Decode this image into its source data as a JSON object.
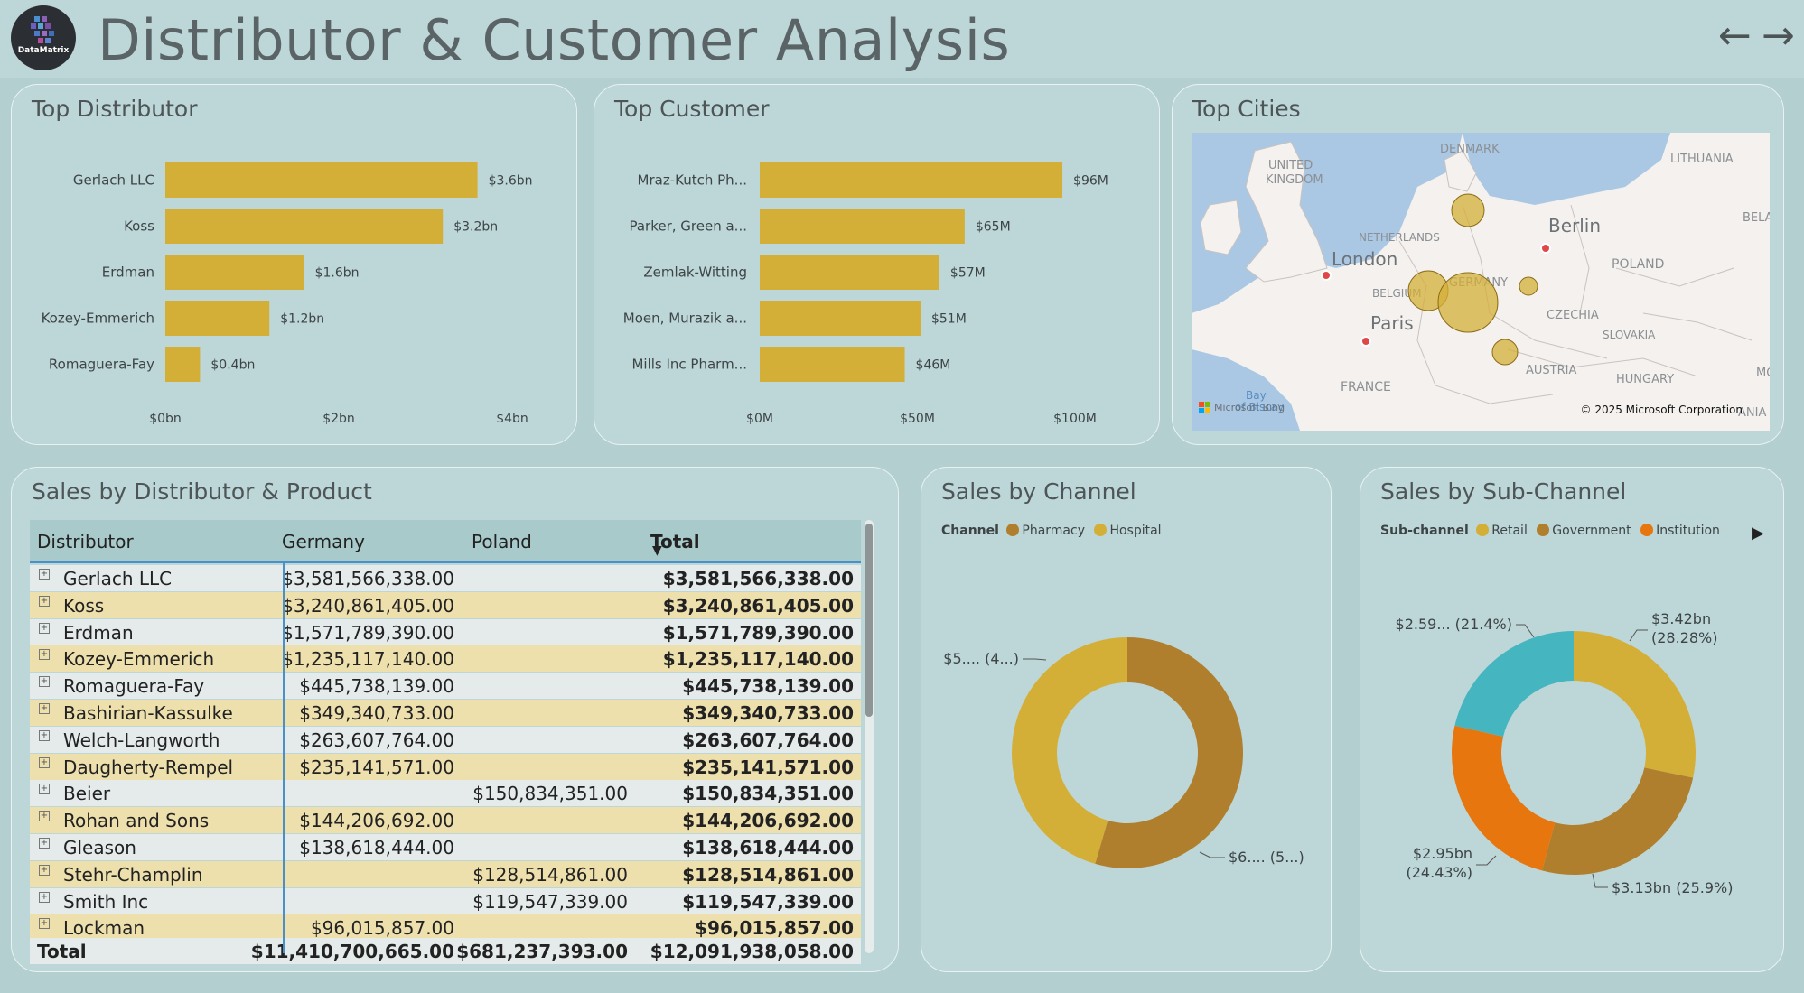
{
  "header": {
    "title": "Distributor & Customer Analysis",
    "logo_text": "DataMatrix",
    "back_icon": "←",
    "forward_icon": "→"
  },
  "top_distributor": {
    "title": "Top Distributor",
    "chart_data": {
      "type": "bar",
      "categories": [
        "Gerlach LLC",
        "Koss",
        "Erdman",
        "Kozey-Emmerich",
        "Romaguera-Fay"
      ],
      "values": [
        3.6,
        3.2,
        1.6,
        1.2,
        0.4
      ],
      "value_labels": [
        "$3.6bn",
        "$3.2bn",
        "$1.6bn",
        "$1.2bn",
        "$0.4bn"
      ],
      "xticks": [
        "$0bn",
        "$2bn",
        "$4bn"
      ],
      "xlim": [
        0,
        4
      ],
      "bar_color": "#d4af37"
    }
  },
  "top_customer": {
    "title": "Top Customer",
    "chart_data": {
      "type": "bar",
      "categories": [
        "Mraz-Kutch Ph...",
        "Parker, Green a...",
        "Zemlak-Witting",
        "Moen, Murazik a...",
        "Mills Inc Pharm..."
      ],
      "values": [
        96,
        65,
        57,
        51,
        46
      ],
      "value_labels": [
        "$96M",
        "$65M",
        "$57M",
        "$51M",
        "$46M"
      ],
      "xticks": [
        "$0M",
        "$50M",
        "$100M"
      ],
      "xlim": [
        0,
        100
      ],
      "bar_color": "#d4af37"
    }
  },
  "top_cities": {
    "title": "Top Cities",
    "map_labels": {
      "united_kingdom": "UNITED KINGDOM",
      "denmark": "DENMARK",
      "lithuania": "LITHUANIA",
      "netherlands": "NETHERLANDS",
      "london": "London",
      "berlin": "Berlin",
      "poland": "POLAND",
      "belgium": "BELGIUM",
      "germany": "GERMANY",
      "paris": "Paris",
      "czechia": "CZECHIA",
      "slovakia": "SLOVAKIA",
      "austria": "AUSTRIA",
      "hungary": "HUNGARY",
      "france": "FRANCE",
      "bay_of_biscay": "Bay of Biscay",
      "bela": "BELA",
      "mo": "MO",
      "ania": "ANIA"
    },
    "bing_label": "Microsoft Bing",
    "copyright": "© 2025 Microsoft Corporation"
  },
  "matrix": {
    "title": "Sales by Distributor & Product",
    "columns": [
      "Distributor",
      "Germany",
      "Poland",
      "Total"
    ],
    "sort_icon": "▼",
    "expand_icon": "+",
    "rows": [
      {
        "name": "Gerlach LLC",
        "germany": "$3,581,566,338.00",
        "poland": "",
        "total": "$3,581,566,338.00"
      },
      {
        "name": "Koss",
        "germany": "$3,240,861,405.00",
        "poland": "",
        "total": "$3,240,861,405.00"
      },
      {
        "name": "Erdman",
        "germany": "$1,571,789,390.00",
        "poland": "",
        "total": "$1,571,789,390.00"
      },
      {
        "name": "Kozey-Emmerich",
        "germany": "$1,235,117,140.00",
        "poland": "",
        "total": "$1,235,117,140.00"
      },
      {
        "name": "Romaguera-Fay",
        "germany": "$445,738,139.00",
        "poland": "",
        "total": "$445,738,139.00"
      },
      {
        "name": "Bashirian-Kassulke",
        "germany": "$349,340,733.00",
        "poland": "",
        "total": "$349,340,733.00"
      },
      {
        "name": "Welch-Langworth",
        "germany": "$263,607,764.00",
        "poland": "",
        "total": "$263,607,764.00"
      },
      {
        "name": "Daugherty-Rempel",
        "germany": "$235,141,571.00",
        "poland": "",
        "total": "$235,141,571.00"
      },
      {
        "name": "Beier",
        "germany": "",
        "poland": "$150,834,351.00",
        "total": "$150,834,351.00"
      },
      {
        "name": "Rohan and Sons",
        "germany": "$144,206,692.00",
        "poland": "",
        "total": "$144,206,692.00"
      },
      {
        "name": "Gleason",
        "germany": "$138,618,444.00",
        "poland": "",
        "total": "$138,618,444.00"
      },
      {
        "name": "Stehr-Champlin",
        "germany": "",
        "poland": "$128,514,861.00",
        "total": "$128,514,861.00"
      },
      {
        "name": "Smith Inc",
        "germany": "",
        "poland": "$119,547,339.00",
        "total": "$119,547,339.00"
      },
      {
        "name": "Lockman",
        "germany": "$96,015,857.00",
        "poland": "",
        "total": "$96,015,857.00"
      }
    ],
    "total_row": {
      "name": "Total",
      "germany": "$11,410,700,665.00",
      "poland": "$681,237,393.00",
      "total": "$12,091,938,058.00"
    }
  },
  "sales_by_channel": {
    "title": "Sales by Channel",
    "legend_title": "Channel",
    "chart_data": {
      "type": "pie",
      "donut": true,
      "categories": [
        "Pharmacy",
        "Hospital"
      ],
      "values": [
        54.5,
        45.5
      ],
      "colors": [
        "#b07f2e",
        "#d4af37"
      ],
      "labels": [
        "$6.... (5...)",
        "$5.... (4...)"
      ]
    }
  },
  "sales_by_subchannel": {
    "title": "Sales by Sub-Channel",
    "legend_title": "Sub-channel",
    "chart_data": {
      "type": "pie",
      "donut": true,
      "categories": [
        "Retail",
        "Government",
        "Institution",
        ""
      ],
      "values": [
        28.28,
        25.9,
        24.43,
        21.4
      ],
      "colors": [
        "#d4af37",
        "#b07f2e",
        "#e8760f",
        "#45b5c0"
      ],
      "labels": [
        {
          "line1": "$3.42bn",
          "line2": "(28.28%)"
        },
        {
          "line1": "$3.13bn (25.9%)",
          "line2": ""
        },
        {
          "line1": "$2.95bn",
          "line2": "(24.43%)"
        },
        {
          "line1": "$2.59... (21.4%)",
          "line2": ""
        }
      ]
    }
  }
}
